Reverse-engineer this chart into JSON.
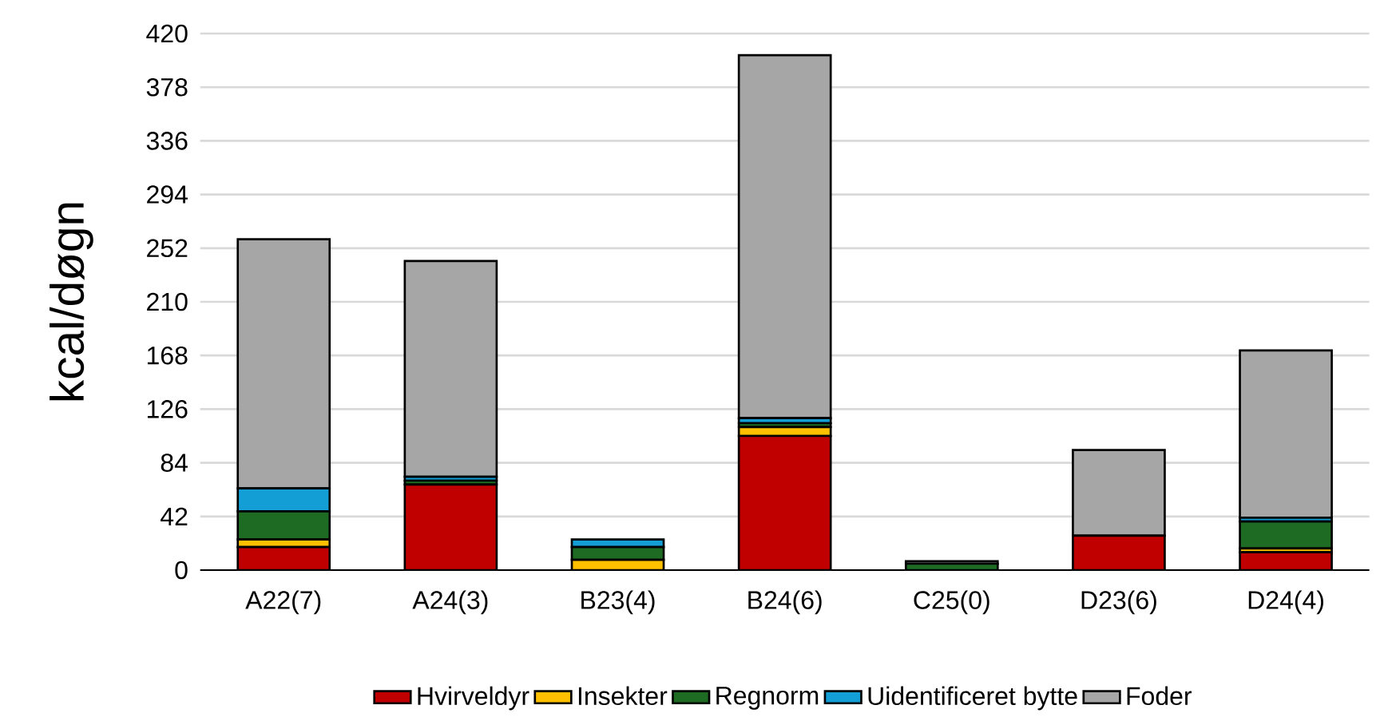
{
  "chart_data": {
    "type": "bar",
    "stacked": true,
    "ylabel": "kcal/døgn",
    "categories": [
      "A22(7)",
      "A24(3)",
      "B23(4)",
      "B24(6)",
      "C25(0)",
      "D23(6)",
      "D24(4)"
    ],
    "series": [
      {
        "name": "Hvirveldyr",
        "color": "#c00000",
        "values": [
          18,
          67,
          0,
          105,
          0,
          27,
          14
        ]
      },
      {
        "name": "Insekter",
        "color": "#ffc000",
        "values": [
          6,
          0,
          8,
          7,
          0,
          0,
          3
        ]
      },
      {
        "name": "Regnorm",
        "color": "#1e6b24",
        "values": [
          22,
          3,
          10,
          3,
          5,
          0,
          21
        ]
      },
      {
        "name": "Uidentificeret bytte",
        "color": "#139fd6",
        "values": [
          18,
          3,
          6,
          4,
          0,
          0,
          3
        ]
      },
      {
        "name": "Foder",
        "color": "#a6a6a6",
        "values": [
          195,
          169,
          0,
          284,
          2,
          67,
          131
        ]
      }
    ],
    "ylim": [
      0,
      420
    ],
    "yticks": [
      0,
      42,
      84,
      126,
      168,
      210,
      252,
      294,
      336,
      378,
      420
    ],
    "grid": "y",
    "legend": "bottom"
  }
}
